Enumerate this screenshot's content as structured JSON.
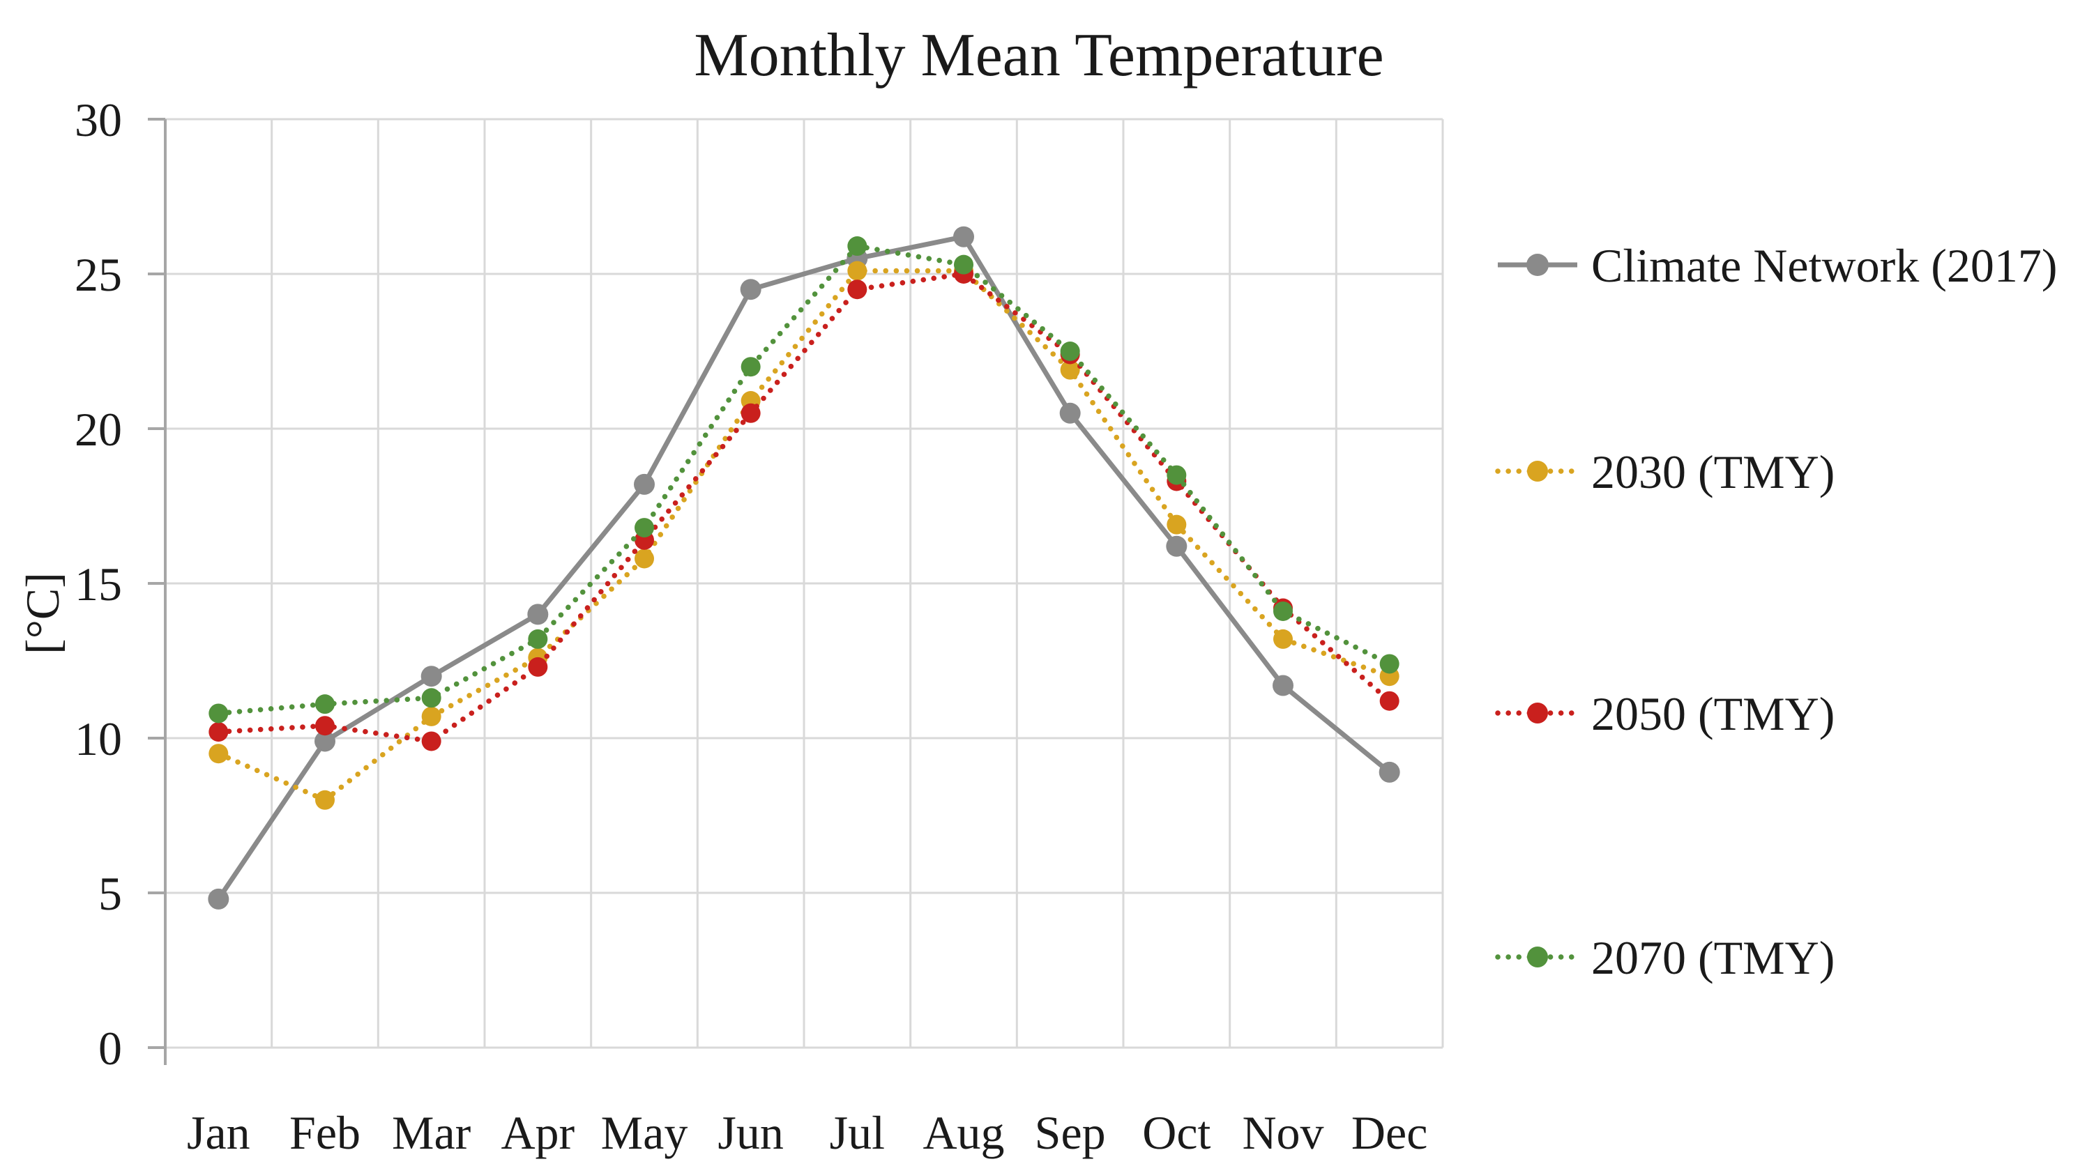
{
  "chart_data": {
    "type": "line",
    "title": "Monthly Mean Temperature",
    "xlabel": "",
    "ylabel": "[°C]",
    "categories": [
      "Jan",
      "Feb",
      "Mar",
      "Apr",
      "May",
      "Jun",
      "Jul",
      "Aug",
      "Sep",
      "Oct",
      "Nov",
      "Dec"
    ],
    "y_ticks": [
      0,
      5,
      10,
      15,
      20,
      25,
      30
    ],
    "ylim": [
      0,
      30
    ],
    "grid": true,
    "legend_position": "right",
    "series": [
      {
        "name": "Climate Network (2017)",
        "color": "#8A8A8A",
        "line_style": "solid",
        "marker": "circle",
        "values": [
          4.8,
          9.9,
          12.0,
          14.0,
          18.2,
          24.5,
          25.5,
          26.2,
          20.5,
          16.2,
          11.7,
          8.9
        ]
      },
      {
        "name": "2030 (TMY)",
        "color": "#D9A420",
        "line_style": "dotted",
        "marker": "circle",
        "values": [
          9.5,
          8.0,
          10.7,
          12.6,
          15.8,
          20.9,
          25.1,
          25.1,
          21.9,
          16.9,
          13.2,
          12.0
        ]
      },
      {
        "name": "2050 (TMY)",
        "color": "#C9201D",
        "line_style": "dotted",
        "marker": "circle",
        "values": [
          10.2,
          10.4,
          9.9,
          12.3,
          16.4,
          20.5,
          24.5,
          25.0,
          22.4,
          18.3,
          14.2,
          11.2
        ]
      },
      {
        "name": "2070 (TMY)",
        "color": "#52923C",
        "line_style": "dotted",
        "marker": "circle",
        "values": [
          10.8,
          11.1,
          11.3,
          13.2,
          16.8,
          22.0,
          25.9,
          25.3,
          22.5,
          18.5,
          14.1,
          12.4
        ]
      }
    ]
  },
  "colors": {
    "grid": "#D9D9D9",
    "axis": "#A6A6A6",
    "text": "#1A1A1A",
    "background": "#FFFFFF"
  }
}
